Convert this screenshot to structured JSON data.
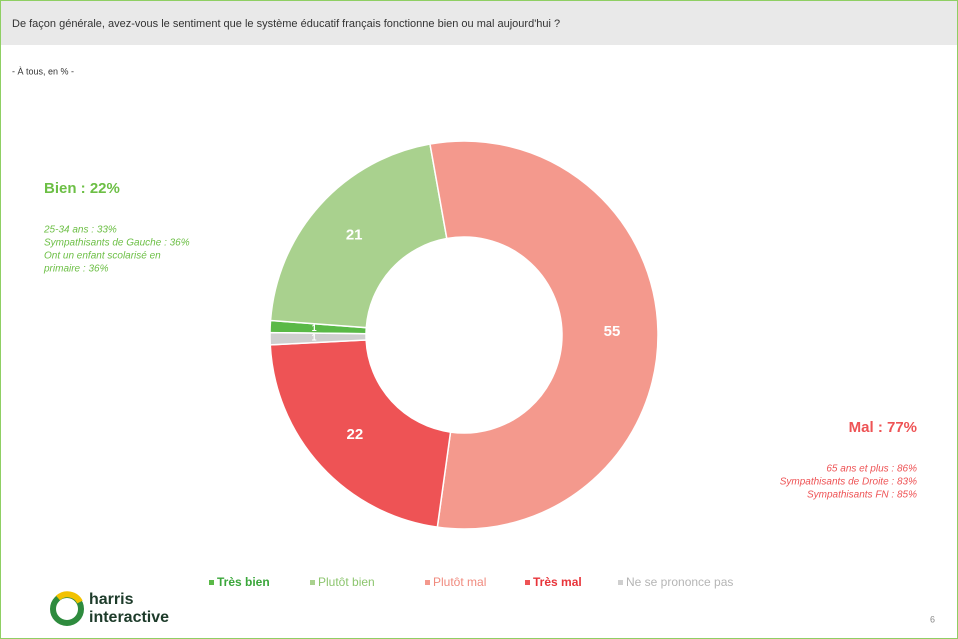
{
  "chart_data": {
    "type": "donut",
    "title": "De façon générale, avez-vous le sentiment que le système éducatif français fonctionne bien ou mal aujourd'hui ?",
    "subtitle": "- À tous, en % -",
    "categories": [
      "Très bien",
      "Plutôt bien",
      "Plutôt mal",
      "Très mal",
      "Ne se prononce pas"
    ],
    "values": [
      1,
      21,
      55,
      22,
      1
    ],
    "colors": [
      "#5ab947",
      "#a9d18e",
      "#f4998d",
      "#ee5355",
      "#cfcfcf"
    ],
    "legend_text_colors": [
      "#3aa63a",
      "#8cc56e",
      "#f08a7e",
      "#e8343a",
      "#b5b5b5"
    ],
    "legend_bold": [
      true,
      false,
      false,
      true,
      false
    ],
    "legend": "bottom",
    "annotations": [
      {
        "title": "Bien : 22%",
        "lines": [
          "25-34 ans : 33%",
          "Sympathisants de Gauche : 36%",
          "Ont un enfant scolarisé en",
          "primaire : 36%"
        ]
      },
      {
        "title": "Mal : 77%",
        "lines": [
          "65 ans et plus : 86%",
          "Sympathisants de Droite : 83%",
          "Sympathisants FN : 85%"
        ]
      }
    ]
  },
  "logo": [
    "harris",
    "interactive"
  ],
  "page_number": "6"
}
